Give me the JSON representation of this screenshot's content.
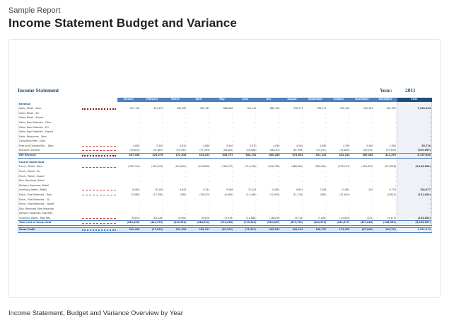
{
  "header": {
    "kicker": "Sample Report",
    "title": "Income Statement Budget and Variance"
  },
  "sheet": {
    "title": "Income Statement",
    "year_label": "Year:",
    "year": "2011",
    "months": [
      "January",
      "February",
      "March",
      "April",
      "May",
      "June",
      "July",
      "August",
      "September",
      "October",
      "November",
      "December"
    ],
    "total_header": "2011",
    "rows": [
      {
        "kind": "sec",
        "label": "Revenue",
        "values": [
          "",
          "",
          "",
          "",
          "",
          "",
          "",
          "",
          "",
          "",
          "",
          ""
        ],
        "total": "",
        "spark": "none"
      },
      {
        "kind": "data",
        "label": "Sales, Retail - Dom.",
        "values": [
          "671,710",
          "451,433",
          "503,509",
          "545,541",
          "686,980",
          "701,131",
          "862,349",
          "938,773",
          "590,273",
          "459,449",
          "392,383",
          "442,593"
        ],
        "total": "7,226,224",
        "spark": "solid"
      },
      {
        "kind": "data",
        "label": "Sales, Retail - EU",
        "values": [
          "-",
          "-",
          "-",
          "-",
          "-",
          "-",
          "-",
          "-",
          "-",
          "-",
          "-",
          "-"
        ],
        "total": "-",
        "spark": "none"
      },
      {
        "kind": "data",
        "label": "Sales, Retail - Export",
        "values": [
          "-",
          "-",
          "-",
          "-",
          "-",
          "-",
          "-",
          "-",
          "-",
          "-",
          "-",
          "-"
        ],
        "total": "-",
        "spark": "none"
      },
      {
        "kind": "data",
        "label": "Sales, Raw Materials - Dom.",
        "values": [
          "-",
          "-",
          "-",
          "-",
          "-",
          "-",
          "-",
          "-",
          "-",
          "-",
          "-",
          "-"
        ],
        "total": "-",
        "spark": "none"
      },
      {
        "kind": "data",
        "label": "Sales, Raw Materials - EU",
        "values": [
          "-",
          "-",
          "-",
          "-",
          "-",
          "-",
          "-",
          "-",
          "-",
          "-",
          "-",
          "-"
        ],
        "total": "-",
        "spark": "none"
      },
      {
        "kind": "data",
        "label": "Sales, Raw Materials - Export",
        "values": [
          "-",
          "-",
          "-",
          "-",
          "-",
          "-",
          "-",
          "-",
          "-",
          "-",
          "-",
          "-"
        ],
        "total": "-",
        "spark": "none"
      },
      {
        "kind": "data",
        "label": "Sales, Resources - Dom.",
        "values": [
          "-",
          "-",
          "-",
          "-",
          "-",
          "-",
          "-",
          "-",
          "-",
          "-",
          "-",
          "-"
        ],
        "total": "-",
        "spark": "none"
      },
      {
        "kind": "data",
        "label": "Consulting Fees - Dom.",
        "values": [
          "-",
          "-",
          "-",
          "-",
          "-",
          "-",
          "-",
          "-",
          "-",
          "-",
          "-",
          "-"
        ],
        "total": "-",
        "spark": "none"
      },
      {
        "kind": "data",
        "label": "Fees and Charges Rec. - Dom.",
        "values": [
          "4,650",
          "3,540",
          "4,910",
          "4,600",
          "5,440",
          "3,970",
          "4,040",
          "4,520",
          "4,080",
          "4,390",
          "3,940",
          "3,000"
        ],
        "total": "50,720",
        "spark": "dash"
      },
      {
        "kind": "data",
        "label": "Discount Granted",
        "values": [
          "(49,022)",
          "(31,687)",
          "(35,785)",
          "(37,349)",
          "(46,582)",
          "(50,908)",
          "(66,103)",
          "(67,399)",
          "(43,151)",
          "(31,605)",
          "(26,915)",
          "(33,300)"
        ],
        "total": "(519,699)",
        "spark": "dash"
      },
      {
        "kind": "sum",
        "label": "Net Revenue",
        "values": [
          "627,338",
          "423,276",
          "472,634",
          "513,222",
          "645,797",
          "654,192",
          "800,286",
          "875,894",
          "551,232",
          "432,234",
          "369,408",
          "412,293"
        ],
        "total": "6,757,645",
        "spark": "solid"
      },
      {
        "kind": "gap",
        "label": "",
        "values": [
          "",
          "",
          "",
          "",
          "",
          "",
          "",
          "",
          "",
          "",
          "",
          ""
        ],
        "total": "",
        "spark": "none"
      },
      {
        "kind": "sec",
        "label": "Cost of Goods Sold",
        "values": [
          "",
          "",
          "",
          "",
          "",
          "",
          "",
          "",
          "",
          "",
          "",
          ""
        ],
        "total": "",
        "spark": "none"
      },
      {
        "kind": "data",
        "label": "Purch., Retail - Dom.",
        "values": [
          "(282,744)",
          "(425,814)",
          "(249,813)",
          "(229,858)",
          "(706,217)",
          "(714,198)",
          "(520,736)",
          "(660,961)",
          "(384,202)",
          "(230,191)",
          "(456,957)",
          "(237,058)"
        ],
        "total": "(5,105,508)",
        "spark": "dash"
      },
      {
        "kind": "data",
        "label": "Purch., Retail - EU",
        "values": [
          "-",
          "-",
          "-",
          "-",
          "-",
          "-",
          "-",
          "-",
          "-",
          "-",
          "-",
          "-"
        ],
        "total": "-",
        "spark": "none"
      },
      {
        "kind": "data",
        "label": "Purch., Retail - Export",
        "values": [
          "-",
          "-",
          "-",
          "-",
          "-",
          "-",
          "-",
          "-",
          "-",
          "-",
          "-",
          "-"
        ],
        "total": "-",
        "spark": "none"
      },
      {
        "kind": "data",
        "label": "Disc. Received, Retail",
        "values": [
          "-",
          "-",
          "-",
          "-",
          "-",
          "-",
          "-",
          "-",
          "-",
          "-",
          "-",
          "-"
        ],
        "total": "-",
        "spark": "none"
      },
      {
        "kind": "data",
        "label": "Delivery Expenses, Retail",
        "values": [
          "-",
          "-",
          "-",
          "-",
          "-",
          "-",
          "-",
          "-",
          "-",
          "-",
          "-",
          "-"
        ],
        "total": "-",
        "spark": "none"
      },
      {
        "kind": "data",
        "label": "Inventory Adjmt., Retail",
        "values": [
          "10,859",
          "20,156",
          "9,643",
          "9,341",
          "9,596",
          "21,024",
          "14,682",
          "9,624",
          "7,056",
          "13,881",
          "240",
          "8,776"
        ],
        "total": "134,877",
        "spark": "dash"
      },
      {
        "kind": "data",
        "label": "Purch., Raw Materials - Dom.",
        "values": [
          "(3,580)",
          "(17,590)",
          "(280)",
          "(28,155)",
          "(9,085)",
          "(15,490)",
          "(12,955)",
          "(11,745)",
          "(380)",
          "(21,645)",
          "-",
          "(8,825)"
        ],
        "total": "(131,030)",
        "spark": "dash"
      },
      {
        "kind": "data",
        "label": "Purch., Raw Materials - EU",
        "values": [
          "-",
          "-",
          "-",
          "-",
          "-",
          "-",
          "-",
          "-",
          "-",
          "-",
          "-",
          "-"
        ],
        "total": "-",
        "spark": "none"
      },
      {
        "kind": "data",
        "label": "Purch., Raw Materials - Export",
        "values": [
          "-",
          "-",
          "-",
          "-",
          "-",
          "-",
          "-",
          "-",
          "-",
          "-",
          "-",
          "-"
        ],
        "total": "-",
        "spark": "none"
      },
      {
        "kind": "data",
        "label": "Disc. Received, Raw Materials",
        "values": [
          "-",
          "-",
          "-",
          "-",
          "-",
          "-",
          "-",
          "-",
          "-",
          "-",
          "-",
          "-"
        ],
        "total": "-",
        "spark": "none"
      },
      {
        "kind": "data",
        "label": "Delivery Expenses, Raw Mat.",
        "values": [
          "-",
          "-",
          "-",
          "-",
          "-",
          "-",
          "-",
          "-",
          "-",
          "-",
          "-",
          "-"
        ],
        "total": "-",
        "spark": "none"
      },
      {
        "kind": "data",
        "label": "Inventory Adjmt., Raw Mat.",
        "values": [
          "(9,434)",
          "(18,126)",
          "(9,550)",
          "(9,419)",
          "(9,519)",
          "(10,880)",
          "(16,078)",
          "(9,710)",
          "(7,049)",
          "(14,094)",
          "(331)",
          "(9,475)"
        ],
        "total": "(133,652)",
        "spark": "dash"
      },
      {
        "kind": "sum",
        "label": "Total Cost of Goods Sold",
        "values": [
          "(284,900)",
          "(441,375)",
          "(249,993)",
          "(248,091)",
          "(715,236)",
          "(719,543)",
          "(535,087)",
          "(672,792)",
          "(384,575)",
          "(251,877)",
          "(457,048)",
          "(246,562)"
        ],
        "total": "(5,235,307)",
        "spark": "dash"
      },
      {
        "kind": "gap",
        "label": "",
        "values": [
          "",
          "",
          "",
          "",
          "",
          "",
          "",
          "",
          "",
          "",
          "",
          ""
        ],
        "total": "",
        "spark": "none"
      },
      {
        "kind": "gp",
        "label": "Gross Profit",
        "values": [
          "342,438",
          "(17,899)",
          "222,054",
          "265,131",
          "(69,399)",
          "(75,351)",
          "265,099",
          "203,102",
          "166,757",
          "173,225",
          "(87,640)",
          "165,731"
        ],
        "total": "1,522,219",
        "spark": "dotblue"
      }
    ]
  },
  "caption": "Income Statement, Budget and Variance Overview by Year"
}
